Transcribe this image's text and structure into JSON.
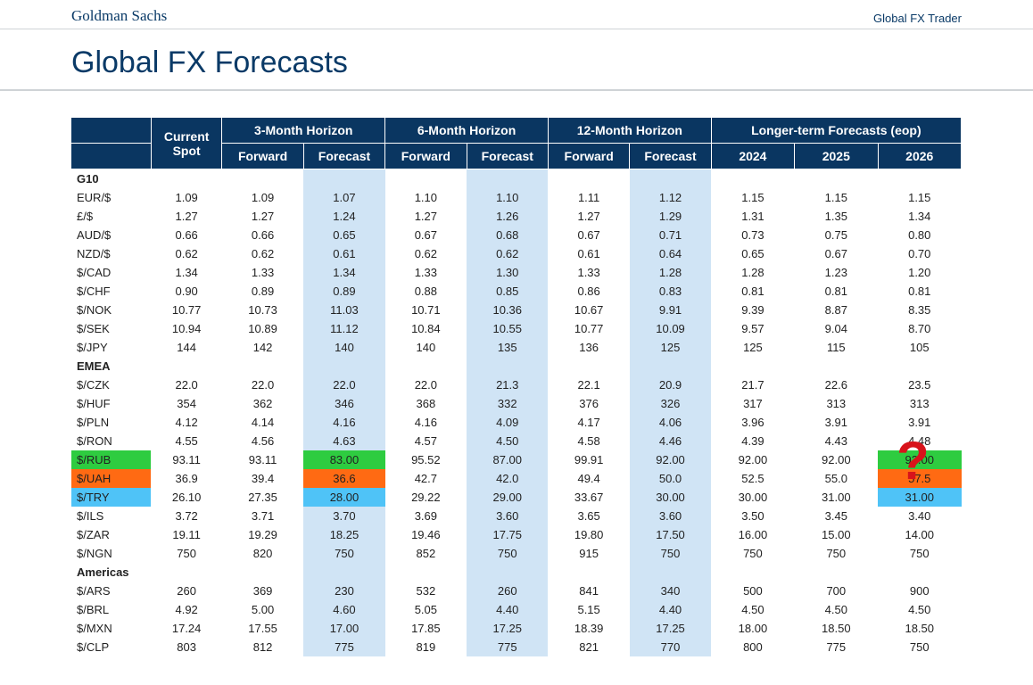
{
  "header": {
    "brand": "Goldman Sachs",
    "tagline": "Global FX Trader"
  },
  "title": "Global FX Forecasts",
  "columns": {
    "current_spot": "Current Spot",
    "h3": "3-Month Horizon",
    "h6": "6-Month Horizon",
    "h12": "12-Month Horizon",
    "lt": "Longer-term Forecasts (eop)",
    "forward": "Forward",
    "forecast": "Forecast",
    "y2024": "2024",
    "y2025": "2025",
    "y2026": "2026"
  },
  "sections": [
    {
      "label": "G10",
      "rows": [
        {
          "pair": "EUR/$",
          "spot": "1.09",
          "f3": "1.09",
          "c3": "1.07",
          "f6": "1.10",
          "c6": "1.10",
          "f12": "1.11",
          "c12": "1.12",
          "y24": "1.15",
          "y25": "1.15",
          "y26": "1.15"
        },
        {
          "pair": "£/$",
          "spot": "1.27",
          "f3": "1.27",
          "c3": "1.24",
          "f6": "1.27",
          "c6": "1.26",
          "f12": "1.27",
          "c12": "1.29",
          "y24": "1.31",
          "y25": "1.35",
          "y26": "1.34"
        },
        {
          "pair": "AUD/$",
          "spot": "0.66",
          "f3": "0.66",
          "c3": "0.65",
          "f6": "0.67",
          "c6": "0.68",
          "f12": "0.67",
          "c12": "0.71",
          "y24": "0.73",
          "y25": "0.75",
          "y26": "0.80"
        },
        {
          "pair": "NZD/$",
          "spot": "0.62",
          "f3": "0.62",
          "c3": "0.61",
          "f6": "0.62",
          "c6": "0.62",
          "f12": "0.61",
          "c12": "0.64",
          "y24": "0.65",
          "y25": "0.67",
          "y26": "0.70"
        },
        {
          "pair": "$/CAD",
          "spot": "1.34",
          "f3": "1.33",
          "c3": "1.34",
          "f6": "1.33",
          "c6": "1.30",
          "f12": "1.33",
          "c12": "1.28",
          "y24": "1.28",
          "y25": "1.23",
          "y26": "1.20"
        },
        {
          "pair": "$/CHF",
          "spot": "0.90",
          "f3": "0.89",
          "c3": "0.89",
          "f6": "0.88",
          "c6": "0.85",
          "f12": "0.86",
          "c12": "0.83",
          "y24": "0.81",
          "y25": "0.81",
          "y26": "0.81"
        },
        {
          "pair": "$/NOK",
          "spot": "10.77",
          "f3": "10.73",
          "c3": "11.03",
          "f6": "10.71",
          "c6": "10.36",
          "f12": "10.67",
          "c12": "9.91",
          "y24": "9.39",
          "y25": "8.87",
          "y26": "8.35"
        },
        {
          "pair": "$/SEK",
          "spot": "10.94",
          "f3": "10.89",
          "c3": "11.12",
          "f6": "10.84",
          "c6": "10.55",
          "f12": "10.77",
          "c12": "10.09",
          "y24": "9.57",
          "y25": "9.04",
          "y26": "8.70"
        },
        {
          "pair": "$/JPY",
          "spot": "144",
          "f3": "142",
          "c3": "140",
          "f6": "140",
          "c6": "135",
          "f12": "136",
          "c12": "125",
          "y24": "125",
          "y25": "115",
          "y26": "105"
        }
      ]
    },
    {
      "label": "EMEA",
      "rows": [
        {
          "pair": "$/CZK",
          "spot": "22.0",
          "f3": "22.0",
          "c3": "22.0",
          "f6": "22.0",
          "c6": "21.3",
          "f12": "22.1",
          "c12": "20.9",
          "y24": "21.7",
          "y25": "22.6",
          "y26": "23.5"
        },
        {
          "pair": "$/HUF",
          "spot": "354",
          "f3": "362",
          "c3": "346",
          "f6": "368",
          "c6": "332",
          "f12": "376",
          "c12": "326",
          "y24": "317",
          "y25": "313",
          "y26": "313"
        },
        {
          "pair": "$/PLN",
          "spot": "4.12",
          "f3": "4.14",
          "c3": "4.16",
          "f6": "4.16",
          "c6": "4.09",
          "f12": "4.17",
          "c12": "4.06",
          "y24": "3.96",
          "y25": "3.91",
          "y26": "3.91"
        },
        {
          "pair": "$/RON",
          "spot": "4.55",
          "f3": "4.56",
          "c3": "4.63",
          "f6": "4.57",
          "c6": "4.50",
          "f12": "4.58",
          "c12": "4.46",
          "y24": "4.39",
          "y25": "4.43",
          "y26": "4.48"
        },
        {
          "pair": "$/RUB",
          "spot": "93.11",
          "f3": "93.11",
          "c3": "83.00",
          "f6": "95.52",
          "c6": "87.00",
          "f12": "99.91",
          "c12": "92.00",
          "y24": "92.00",
          "y25": "92.00",
          "y26": "92.00",
          "hl": "#2ecc40"
        },
        {
          "pair": "$/UAH",
          "spot": "36.9",
          "f3": "39.4",
          "c3": "36.6",
          "f6": "42.7",
          "c6": "42.0",
          "f12": "49.4",
          "c12": "50.0",
          "y24": "52.5",
          "y25": "55.0",
          "y26": "57.5",
          "hl": "#ff6a13"
        },
        {
          "pair": "$/TRY",
          "spot": "26.10",
          "f3": "27.35",
          "c3": "28.00",
          "f6": "29.22",
          "c6": "29.00",
          "f12": "33.67",
          "c12": "30.00",
          "y24": "30.00",
          "y25": "31.00",
          "y26": "31.00",
          "hl": "#4fc3f7"
        },
        {
          "pair": "$/ILS",
          "spot": "3.72",
          "f3": "3.71",
          "c3": "3.70",
          "f6": "3.69",
          "c6": "3.60",
          "f12": "3.65",
          "c12": "3.60",
          "y24": "3.50",
          "y25": "3.45",
          "y26": "3.40"
        },
        {
          "pair": "$/ZAR",
          "spot": "19.11",
          "f3": "19.29",
          "c3": "18.25",
          "f6": "19.46",
          "c6": "17.75",
          "f12": "19.80",
          "c12": "17.50",
          "y24": "16.00",
          "y25": "15.00",
          "y26": "14.00"
        },
        {
          "pair": "$/NGN",
          "spot": "750",
          "f3": "820",
          "c3": "750",
          "f6": "852",
          "c6": "750",
          "f12": "915",
          "c12": "750",
          "y24": "750",
          "y25": "750",
          "y26": "750"
        }
      ]
    },
    {
      "label": "Americas",
      "rows": [
        {
          "pair": "$/ARS",
          "spot": "260",
          "f3": "369",
          "c3": "230",
          "f6": "532",
          "c6": "260",
          "f12": "841",
          "c12": "340",
          "y24": "500",
          "y25": "700",
          "y26": "900"
        },
        {
          "pair": "$/BRL",
          "spot": "4.92",
          "f3": "5.00",
          "c3": "4.60",
          "f6": "5.05",
          "c6": "4.40",
          "f12": "5.15",
          "c12": "4.40",
          "y24": "4.50",
          "y25": "4.50",
          "y26": "4.50"
        },
        {
          "pair": "$/MXN",
          "spot": "17.24",
          "f3": "17.55",
          "c3": "17.00",
          "f6": "17.85",
          "c6": "17.25",
          "f12": "18.39",
          "c12": "17.25",
          "y24": "18.00",
          "y25": "18.50",
          "y26": "18.50"
        },
        {
          "pair": "$/CLP",
          "spot": "803",
          "f3": "812",
          "c3": "775",
          "f6": "819",
          "c6": "775",
          "f12": "821",
          "c12": "770",
          "y24": "800",
          "y25": "775",
          "y26": "750"
        }
      ]
    }
  ],
  "annotation": {
    "question_mark": "?",
    "colors": {
      "rub": "#2ecc40",
      "uah": "#ff6a13",
      "try": "#4fc3f7",
      "question": "#d8131b"
    }
  }
}
